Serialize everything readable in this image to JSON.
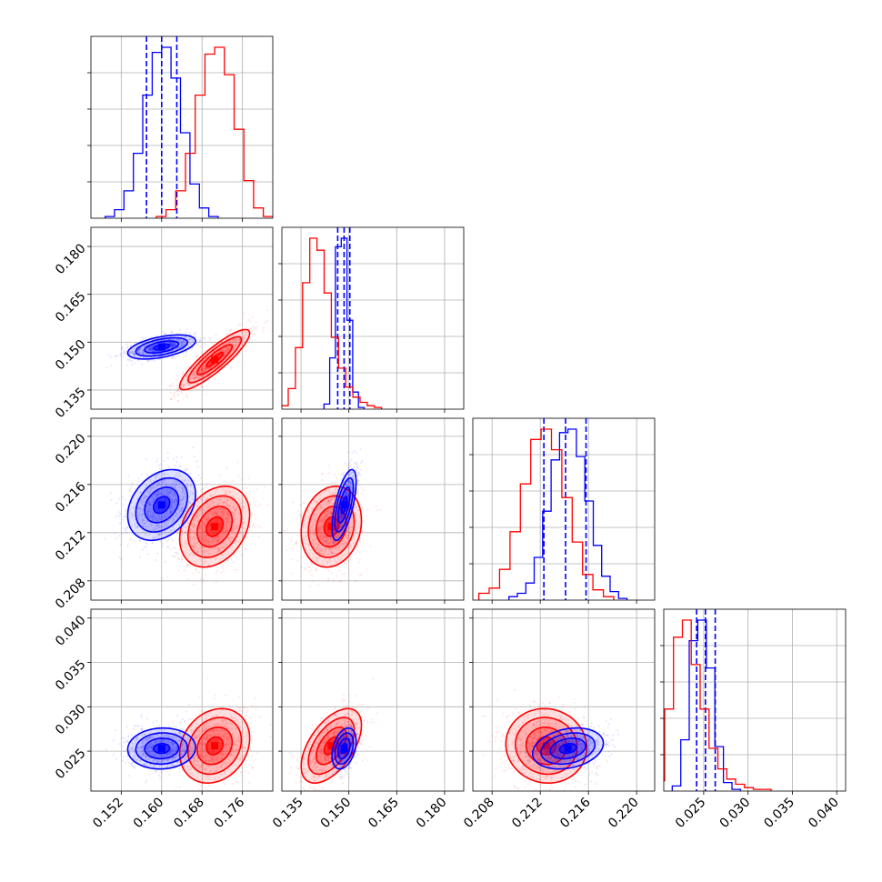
{
  "chart_data": {
    "type": "corner",
    "description_free": true,
    "parameters": [
      {
        "xlim": [
          0.146,
          0.182
        ],
        "ticks": [
          "0.152",
          "0.160",
          "0.168",
          "0.176"
        ]
      },
      {
        "xlim": [
          0.129,
          0.186
        ],
        "ticks": [
          "0.135",
          "0.150",
          "0.165",
          "0.180"
        ]
      },
      {
        "xlim": [
          0.2064,
          0.2215
        ],
        "ticks": [
          "0.208",
          "0.212",
          "0.216",
          "0.220"
        ]
      },
      {
        "xlim": [
          0.0205,
          0.041
        ],
        "ticks": [
          "0.025",
          "0.030",
          "0.035",
          "0.040"
        ]
      }
    ],
    "series": [
      {
        "color": "#0000ff",
        "mean": [
          0.16,
          0.1485,
          0.2143,
          0.0253
        ],
        "sd": [
          0.0032,
          0.0018,
          0.0014,
          0.0011
        ],
        "quantile_lines": [
          [
            0.157,
            0.16,
            0.163
          ],
          [
            0.1465,
            0.1485,
            0.1503
          ],
          [
            0.2123,
            0.2141,
            0.2158
          ],
          [
            0.0242,
            0.0252,
            0.0263
          ]
        ],
        "histograms": [
          [
            0.01,
            0.05,
            0.16,
            0.38,
            0.72,
            0.97,
            1.0,
            0.82,
            0.5,
            0.2,
            0.06,
            0.01
          ],
          [
            0.03,
            0.3,
            0.95,
            1.0,
            0.52,
            0.1,
            0.01
          ],
          [
            0.02,
            0.04,
            0.1,
            0.25,
            0.52,
            0.82,
            0.98,
            1.0,
            0.84,
            0.58,
            0.32,
            0.14,
            0.05,
            0.01
          ],
          [
            0.03,
            0.3,
            0.88,
            1.0,
            0.72,
            0.26,
            0.05,
            0.01
          ]
        ]
      },
      {
        "color": "#ff0000",
        "mean": [
          0.1705,
          0.1445,
          0.2125,
          0.0256
        ],
        "sd": [
          0.0033,
          0.0045,
          0.0016,
          0.002
        ],
        "histograms": [
          [
            0.01,
            0.05,
            0.16,
            0.38,
            0.72,
            0.96,
            1.0,
            0.84,
            0.52,
            0.22,
            0.06,
            0.01
          ],
          [
            0.02,
            0.12,
            0.36,
            0.74,
            1.0,
            0.93,
            0.68,
            0.42,
            0.24,
            0.13,
            0.07,
            0.04,
            0.02,
            0.01
          ],
          [
            0.04,
            0.07,
            0.18,
            0.4,
            0.68,
            0.94,
            1.0,
            0.88,
            0.6,
            0.34,
            0.15,
            0.06,
            0.02
          ],
          [
            0.01,
            0.06,
            0.48,
            0.9,
            1.0,
            0.74,
            0.48,
            0.25,
            0.13,
            0.07,
            0.04,
            0.02,
            0.01,
            0.01
          ]
        ]
      }
    ],
    "correlations": {
      "blue": {
        "1,0": 0.5,
        "2,0": 0.3,
        "2,1": 0.65,
        "3,0": 0.05,
        "3,1": 0.35,
        "3,2": 0.25
      },
      "red": {
        "1,0": 0.88,
        "2,0": 0.3,
        "2,1": 0.15,
        "3,0": 0.2,
        "3,1": 0.55,
        "3,2": -0.05
      }
    },
    "grid": true,
    "legend": "none"
  }
}
